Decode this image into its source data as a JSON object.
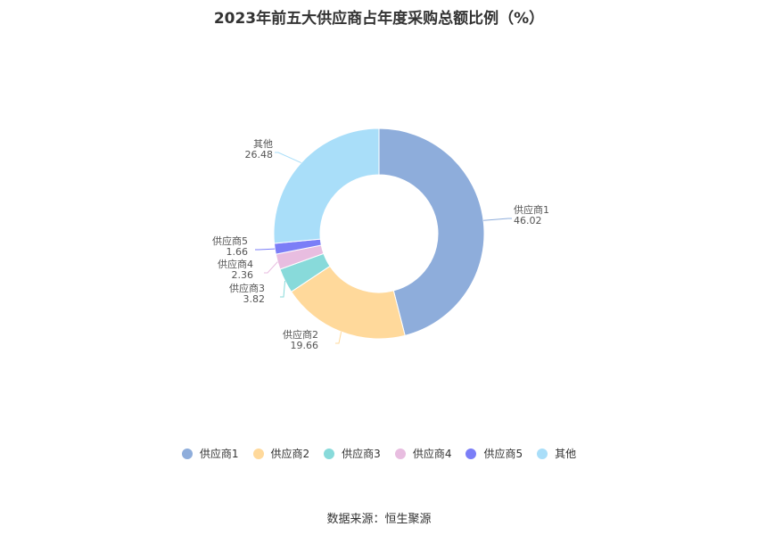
{
  "chart_data": {
    "type": "pie",
    "title": "2023年前五大供应商占年度采购总额比例（%）",
    "series": [
      {
        "name": "供应商1",
        "value": 46.02,
        "value_label": "46.02",
        "color": "#8eaddb"
      },
      {
        "name": "供应商2",
        "value": 19.66,
        "value_label": "19.66",
        "color": "#ffd99b"
      },
      {
        "name": "供应商3",
        "value": 3.82,
        "value_label": "3.82",
        "color": "#88dada"
      },
      {
        "name": "供应商4",
        "value": 2.36,
        "value_label": "2.36",
        "color": "#e8bde0"
      },
      {
        "name": "供应商5",
        "value": 1.66,
        "value_label": "1.66",
        "color": "#7b7ef7"
      },
      {
        "name": "其他",
        "value": 26.48,
        "value_label": "26.48",
        "color": "#a9def9"
      }
    ],
    "legend_position": "bottom",
    "donut": true
  },
  "source": "数据来源：恒生聚源"
}
